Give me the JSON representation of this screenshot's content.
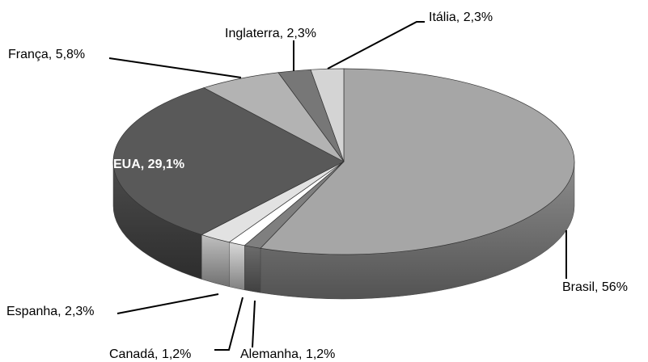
{
  "chart_data": {
    "type": "pie",
    "values": [
      56,
      1.2,
      1.2,
      2.3,
      29.1,
      5.8,
      2.3,
      2.3
    ],
    "value_labels": [
      "Brasil, 56%",
      "Alemanha, 1,2%",
      "Canadá, 1,2%",
      "Espanha, 2,3%",
      "EUA, 29,1%",
      "França, 5,8%",
      "Inglaterra, 2,3%",
      "Itália, 2,3%"
    ],
    "colors": [
      "#a6a6a6",
      "#7f7f7f",
      "#ffffff",
      "#e2e2e2",
      "#595959",
      "#b3b3b3",
      "#777777",
      "#d4d4d4"
    ]
  }
}
